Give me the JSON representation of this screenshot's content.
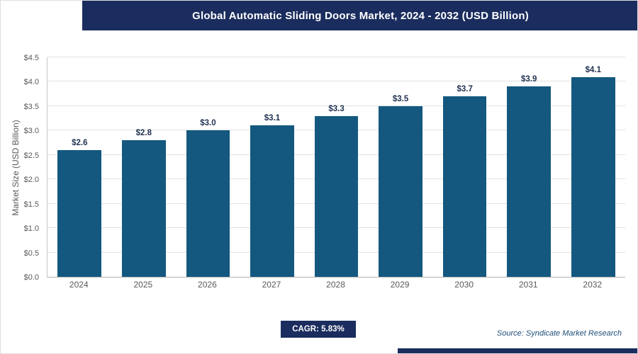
{
  "header": {
    "title": "Global Automatic Sliding Doors Market, 2024 - 2032 (USD Billion)"
  },
  "chart_data": {
    "type": "bar",
    "title": "Global Automatic Sliding Doors Market, 2024 - 2032 (USD Billion)",
    "categories": [
      "2024",
      "2025",
      "2026",
      "2027",
      "2028",
      "2029",
      "2030",
      "2031",
      "2032"
    ],
    "values": [
      2.6,
      2.8,
      3.0,
      3.1,
      3.3,
      3.5,
      3.7,
      3.9,
      4.1
    ],
    "value_labels": [
      "$2.6",
      "$2.8",
      "$3.0",
      "$3.1",
      "$3.3",
      "$3.5",
      "$3.7",
      "$3.9",
      "$4.1"
    ],
    "xlabel": "",
    "ylabel": "Market Size (USD Billion)",
    "ylim": [
      0,
      4.5
    ],
    "ytick_step": 0.5,
    "ytick_labels": [
      "$0.0",
      "$0.5",
      "$1.0",
      "$1.5",
      "$2.0",
      "$2.5",
      "$3.0",
      "$3.5",
      "$4.0",
      "$4.5"
    ],
    "grid": true,
    "legend": "none"
  },
  "footer": {
    "cagr_label": "CAGR: 5.83%",
    "source": "Source: Syndicate Market Research"
  },
  "colors": {
    "header_bg": "#1b2d5e",
    "bar_fill": "#14587f",
    "value_label": "#1f3050",
    "cagr_bg": "#1b2d5e",
    "accent_strip": "#1b2d5e",
    "grid_line": "#e2e2e2",
    "tick_text": "#595959"
  }
}
